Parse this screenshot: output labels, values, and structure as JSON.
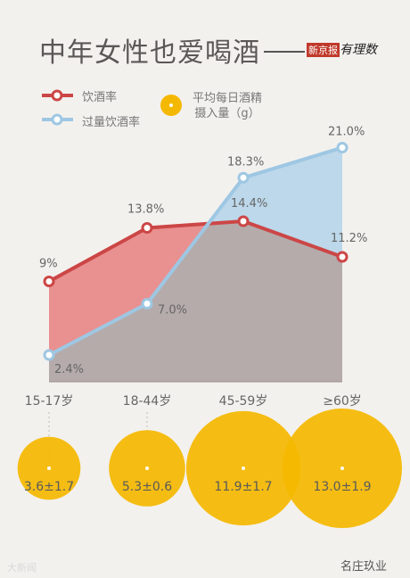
{
  "title": "中年女性也爱喝酒",
  "brand": {
    "paper": "新京报",
    "column": "有理数"
  },
  "watermark_left": "大新闻",
  "watermark_right": "名庄玖业",
  "legend": {
    "drinking_rate": "饮酒率",
    "excess_rate": "过量饮酒率",
    "daily_alcohol_line1": "平均每日酒精",
    "daily_alcohol_line2": "摄入量（g）"
  },
  "colors": {
    "drinking": "#cc4646",
    "excess": "#9ec7e3",
    "alcohol": "#f5b800",
    "area_bottom": "#b5abab",
    "background": "#f3f1ee"
  },
  "chart_data": {
    "type": "line",
    "categories": [
      "15-17岁",
      "18-44岁",
      "45-59岁",
      "≥60岁"
    ],
    "series": [
      {
        "name": "饮酒率",
        "values": [
          9,
          13.8,
          14.4,
          11.2
        ],
        "labels": [
          "9%",
          "13.8%",
          "14.4%",
          "11.2%"
        ]
      },
      {
        "name": "过量饮酒率",
        "values": [
          2.4,
          7.0,
          18.3,
          21.0
        ],
        "labels": [
          "2.4%",
          "7.0%",
          "18.3%",
          "21.0%"
        ]
      }
    ],
    "ylim": [
      0,
      22
    ],
    "bubbles": {
      "name": "平均每日酒精摄入量（g）",
      "values": [
        3.6,
        5.3,
        11.9,
        13.0
      ],
      "labels": [
        "3.6±1.7",
        "5.3±0.6",
        "11.9±1.7",
        "13.0±1.9"
      ]
    }
  }
}
